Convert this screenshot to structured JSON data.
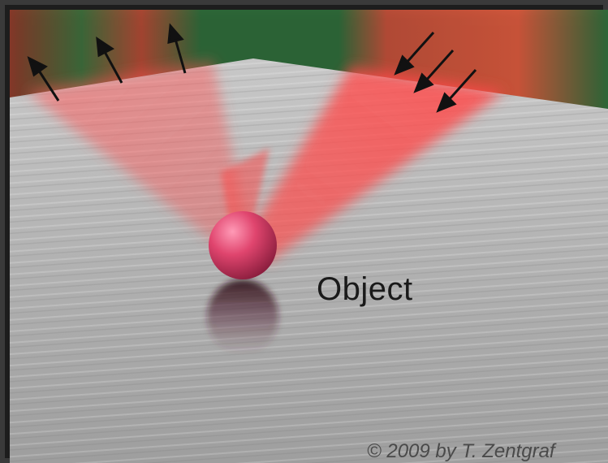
{
  "diagram": {
    "object_label": "Object",
    "copyright": "© 2009 by T. Zentgraf",
    "icons": {
      "outgoing_arrow": "arrow-up-left-icon",
      "incoming_arrow": "arrow-down-left-icon"
    },
    "colors": {
      "background_green": "#2f6b3a",
      "beam_red": "#ff4a4a",
      "floor_gray": "#b8b8b8",
      "sphere": "#e0456e"
    }
  }
}
